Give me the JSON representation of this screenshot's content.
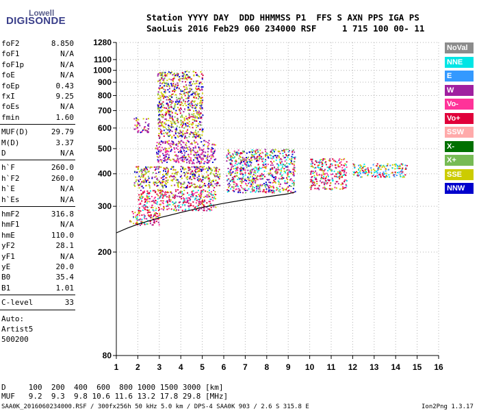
{
  "logo": {
    "top": "Lowell",
    "bottom": "DIGISONDE"
  },
  "header": {
    "line1": "Station YYYY DAY  DDD HHMMSS P1  FFS S AXN PPS IGA PS",
    "line2": "SaoLuis 2016 Feb29 060 234000 RSF     1 715 100 00- 11"
  },
  "params": {
    "group1": [
      {
        "name": "foF2",
        "value": "8.850"
      },
      {
        "name": "foF1",
        "value": "N/A"
      },
      {
        "name": "foF1p",
        "value": "N/A"
      },
      {
        "name": "foE",
        "value": "N/A"
      },
      {
        "name": "foEp",
        "value": "0.43"
      },
      {
        "name": "fxI",
        "value": "9.25"
      },
      {
        "name": "foEs",
        "value": "N/A"
      },
      {
        "name": "fmin",
        "value": "1.60"
      }
    ],
    "group2": [
      {
        "name": "MUF(D)",
        "value": "29.79"
      },
      {
        "name": "M(D)",
        "value": "3.37"
      },
      {
        "name": "D",
        "value": "N/A"
      }
    ],
    "group3": [
      {
        "name": "h`F",
        "value": "260.0"
      },
      {
        "name": "h`F2",
        "value": "260.0"
      },
      {
        "name": "h`E",
        "value": "N/A"
      },
      {
        "name": "h`Es",
        "value": "N/A"
      }
    ],
    "group4": [
      {
        "name": "hmF2",
        "value": "316.8"
      },
      {
        "name": "hmF1",
        "value": "N/A"
      },
      {
        "name": "hmE",
        "value": "110.0"
      },
      {
        "name": "yF2",
        "value": "28.1"
      },
      {
        "name": "yF1",
        "value": "N/A"
      },
      {
        "name": "yE",
        "value": "20.0"
      },
      {
        "name": "B0",
        "value": "35.4"
      },
      {
        "name": "B1",
        "value": "1.01"
      }
    ],
    "clevel": {
      "name": "C-level",
      "value": "33"
    },
    "auto": [
      "Auto:",
      "Artist5",
      "500200"
    ]
  },
  "legend": [
    {
      "label": "NoVal",
      "color": "#8c8c8c"
    },
    {
      "label": "NNE",
      "color": "#00e5e5"
    },
    {
      "label": "E",
      "color": "#3399ff"
    },
    {
      "label": "W",
      "color": "#a020a0"
    },
    {
      "label": "Vo-",
      "color": "#ff3399"
    },
    {
      "label": "Vo+",
      "color": "#e0003a"
    },
    {
      "label": "SSW",
      "color": "#ffaaaa"
    },
    {
      "label": "X-",
      "color": "#007000"
    },
    {
      "label": "X+",
      "color": "#77bb55"
    },
    {
      "label": "SSE",
      "color": "#cccc00"
    },
    {
      "label": "NNW",
      "color": "#0000cc"
    }
  ],
  "bottom": {
    "d_line": "D     100  200  400  600  800 1000 1500 3000 [km]",
    "muf_line": "MUF   9.2  9.3  9.8 10.6 11.6 13.2 17.8 29.8 [MHz]",
    "footer_left": "SAA0K_2016060234000.RSF / 300fx256h 50 kHz 5.0 km / DPS-4 SAA0K 903 / 2.6 S 315.8 E",
    "footer_right": "Ion2Png 1.3.17"
  },
  "chart_data": {
    "type": "scatter",
    "title": "",
    "xlabel": "",
    "ylabel": "",
    "xlim": [
      1,
      16
    ],
    "ylim": [
      80,
      1280
    ],
    "y_scale": "log",
    "x_ticks": [
      1,
      2,
      3,
      4,
      5,
      6,
      7,
      8,
      9,
      10,
      11,
      12,
      13,
      14,
      15,
      16
    ],
    "y_ticks": [
      80,
      200,
      300,
      400,
      500,
      600,
      700,
      800,
      900,
      1000,
      1100,
      1280
    ],
    "grid": true,
    "trace": {
      "name": "",
      "x": [
        1.0,
        1.5,
        2.0,
        3.0,
        4.0,
        5.0,
        6.0,
        7.0,
        8.0,
        9.0,
        9.3
      ],
      "y": [
        237,
        247,
        256,
        271,
        284,
        297,
        308,
        318,
        326,
        335,
        340
      ]
    },
    "echo_regions": [
      {
        "x": [
          1.6,
          3.0
        ],
        "y": [
          255,
          290
        ],
        "color": "Vo+"
      },
      {
        "x": [
          2.0,
          5.6
        ],
        "y": [
          290,
          350
        ],
        "color": "Vo+"
      },
      {
        "x": [
          1.8,
          5.8
        ],
        "y": [
          355,
          430
        ],
        "color": "SSE"
      },
      {
        "x": [
          2.8,
          5.6
        ],
        "y": [
          440,
          540
        ],
        "color": "W"
      },
      {
        "x": [
          2.9,
          5.0
        ],
        "y": [
          550,
          1000
        ],
        "color": "SSE"
      },
      {
        "x": [
          1.8,
          2.5
        ],
        "y": [
          580,
          660
        ],
        "color": "W"
      },
      {
        "x": [
          6.1,
          9.3
        ],
        "y": [
          340,
          500
        ],
        "color": "Vo-"
      },
      {
        "x": [
          10.0,
          11.7
        ],
        "y": [
          350,
          460
        ],
        "color": "Vo+"
      },
      {
        "x": [
          12.0,
          14.5
        ],
        "y": [
          390,
          440
        ],
        "color": "NNE"
      }
    ]
  }
}
